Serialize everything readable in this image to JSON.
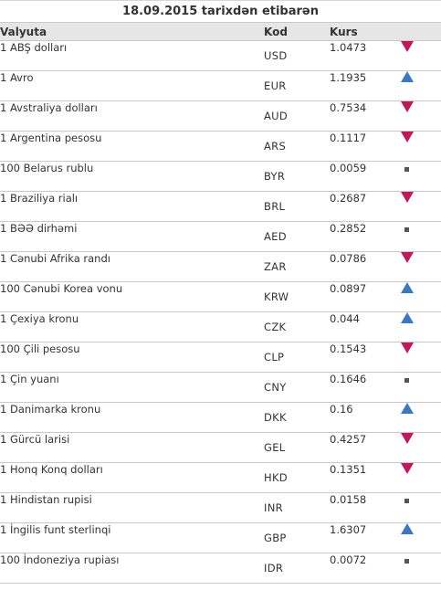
{
  "header": {
    "date_title": "18.09.2015 tarixdən etibarən",
    "col_currency": "Valyuta",
    "col_code": "Kod",
    "col_rate": "Kurs"
  },
  "colors": {
    "down": "#c2185b",
    "up": "#3b78c4",
    "flat": "#555555",
    "header_bg": "#e6e6e6"
  },
  "rows": [
    {
      "name": "1 ABŞ dolları",
      "code": "USD",
      "rate": "1.0473",
      "trend": "down"
    },
    {
      "name": "1 Avro",
      "code": "EUR",
      "rate": "1.1935",
      "trend": "up"
    },
    {
      "name": "1 Avstraliya dolları",
      "code": "AUD",
      "rate": "0.7534",
      "trend": "down"
    },
    {
      "name": "1 Argentina pesosu",
      "code": "ARS",
      "rate": "0.1117",
      "trend": "down"
    },
    {
      "name": "100 Belarus rublu",
      "code": "BYR",
      "rate": "0.0059",
      "trend": "flat"
    },
    {
      "name": "1 Braziliya rialı",
      "code": "BRL",
      "rate": "0.2687",
      "trend": "down"
    },
    {
      "name": "1 BƏƏ dirhəmi",
      "code": "AED",
      "rate": "0.2852",
      "trend": "flat"
    },
    {
      "name": "1 Cənubi Afrika randı",
      "code": "ZAR",
      "rate": "0.0786",
      "trend": "down"
    },
    {
      "name": "100 Cənubi Korea vonu",
      "code": "KRW",
      "rate": "0.0897",
      "trend": "up"
    },
    {
      "name": "1 Çexiya kronu",
      "code": "CZK",
      "rate": "0.044",
      "trend": "up"
    },
    {
      "name": "100 Çili pesosu",
      "code": "CLP",
      "rate": "0.1543",
      "trend": "down"
    },
    {
      "name": "1 Çin yuanı",
      "code": "CNY",
      "rate": "0.1646",
      "trend": "flat"
    },
    {
      "name": "1 Danimarka kronu",
      "code": "DKK",
      "rate": "0.16",
      "trend": "up"
    },
    {
      "name": "1 Gürcü larisi",
      "code": "GEL",
      "rate": "0.4257",
      "trend": "down"
    },
    {
      "name": "1 Honq Konq dolları",
      "code": "HKD",
      "rate": "0.1351",
      "trend": "down"
    },
    {
      "name": "1 Hindistan rupisi",
      "code": "INR",
      "rate": "0.0158",
      "trend": "flat"
    },
    {
      "name": "1 İngilis funt sterlinqi",
      "code": "GBP",
      "rate": "1.6307",
      "trend": "up"
    },
    {
      "name": "100 İndoneziya rupiası",
      "code": "IDR",
      "rate": "0.0072",
      "trend": "flat"
    }
  ]
}
